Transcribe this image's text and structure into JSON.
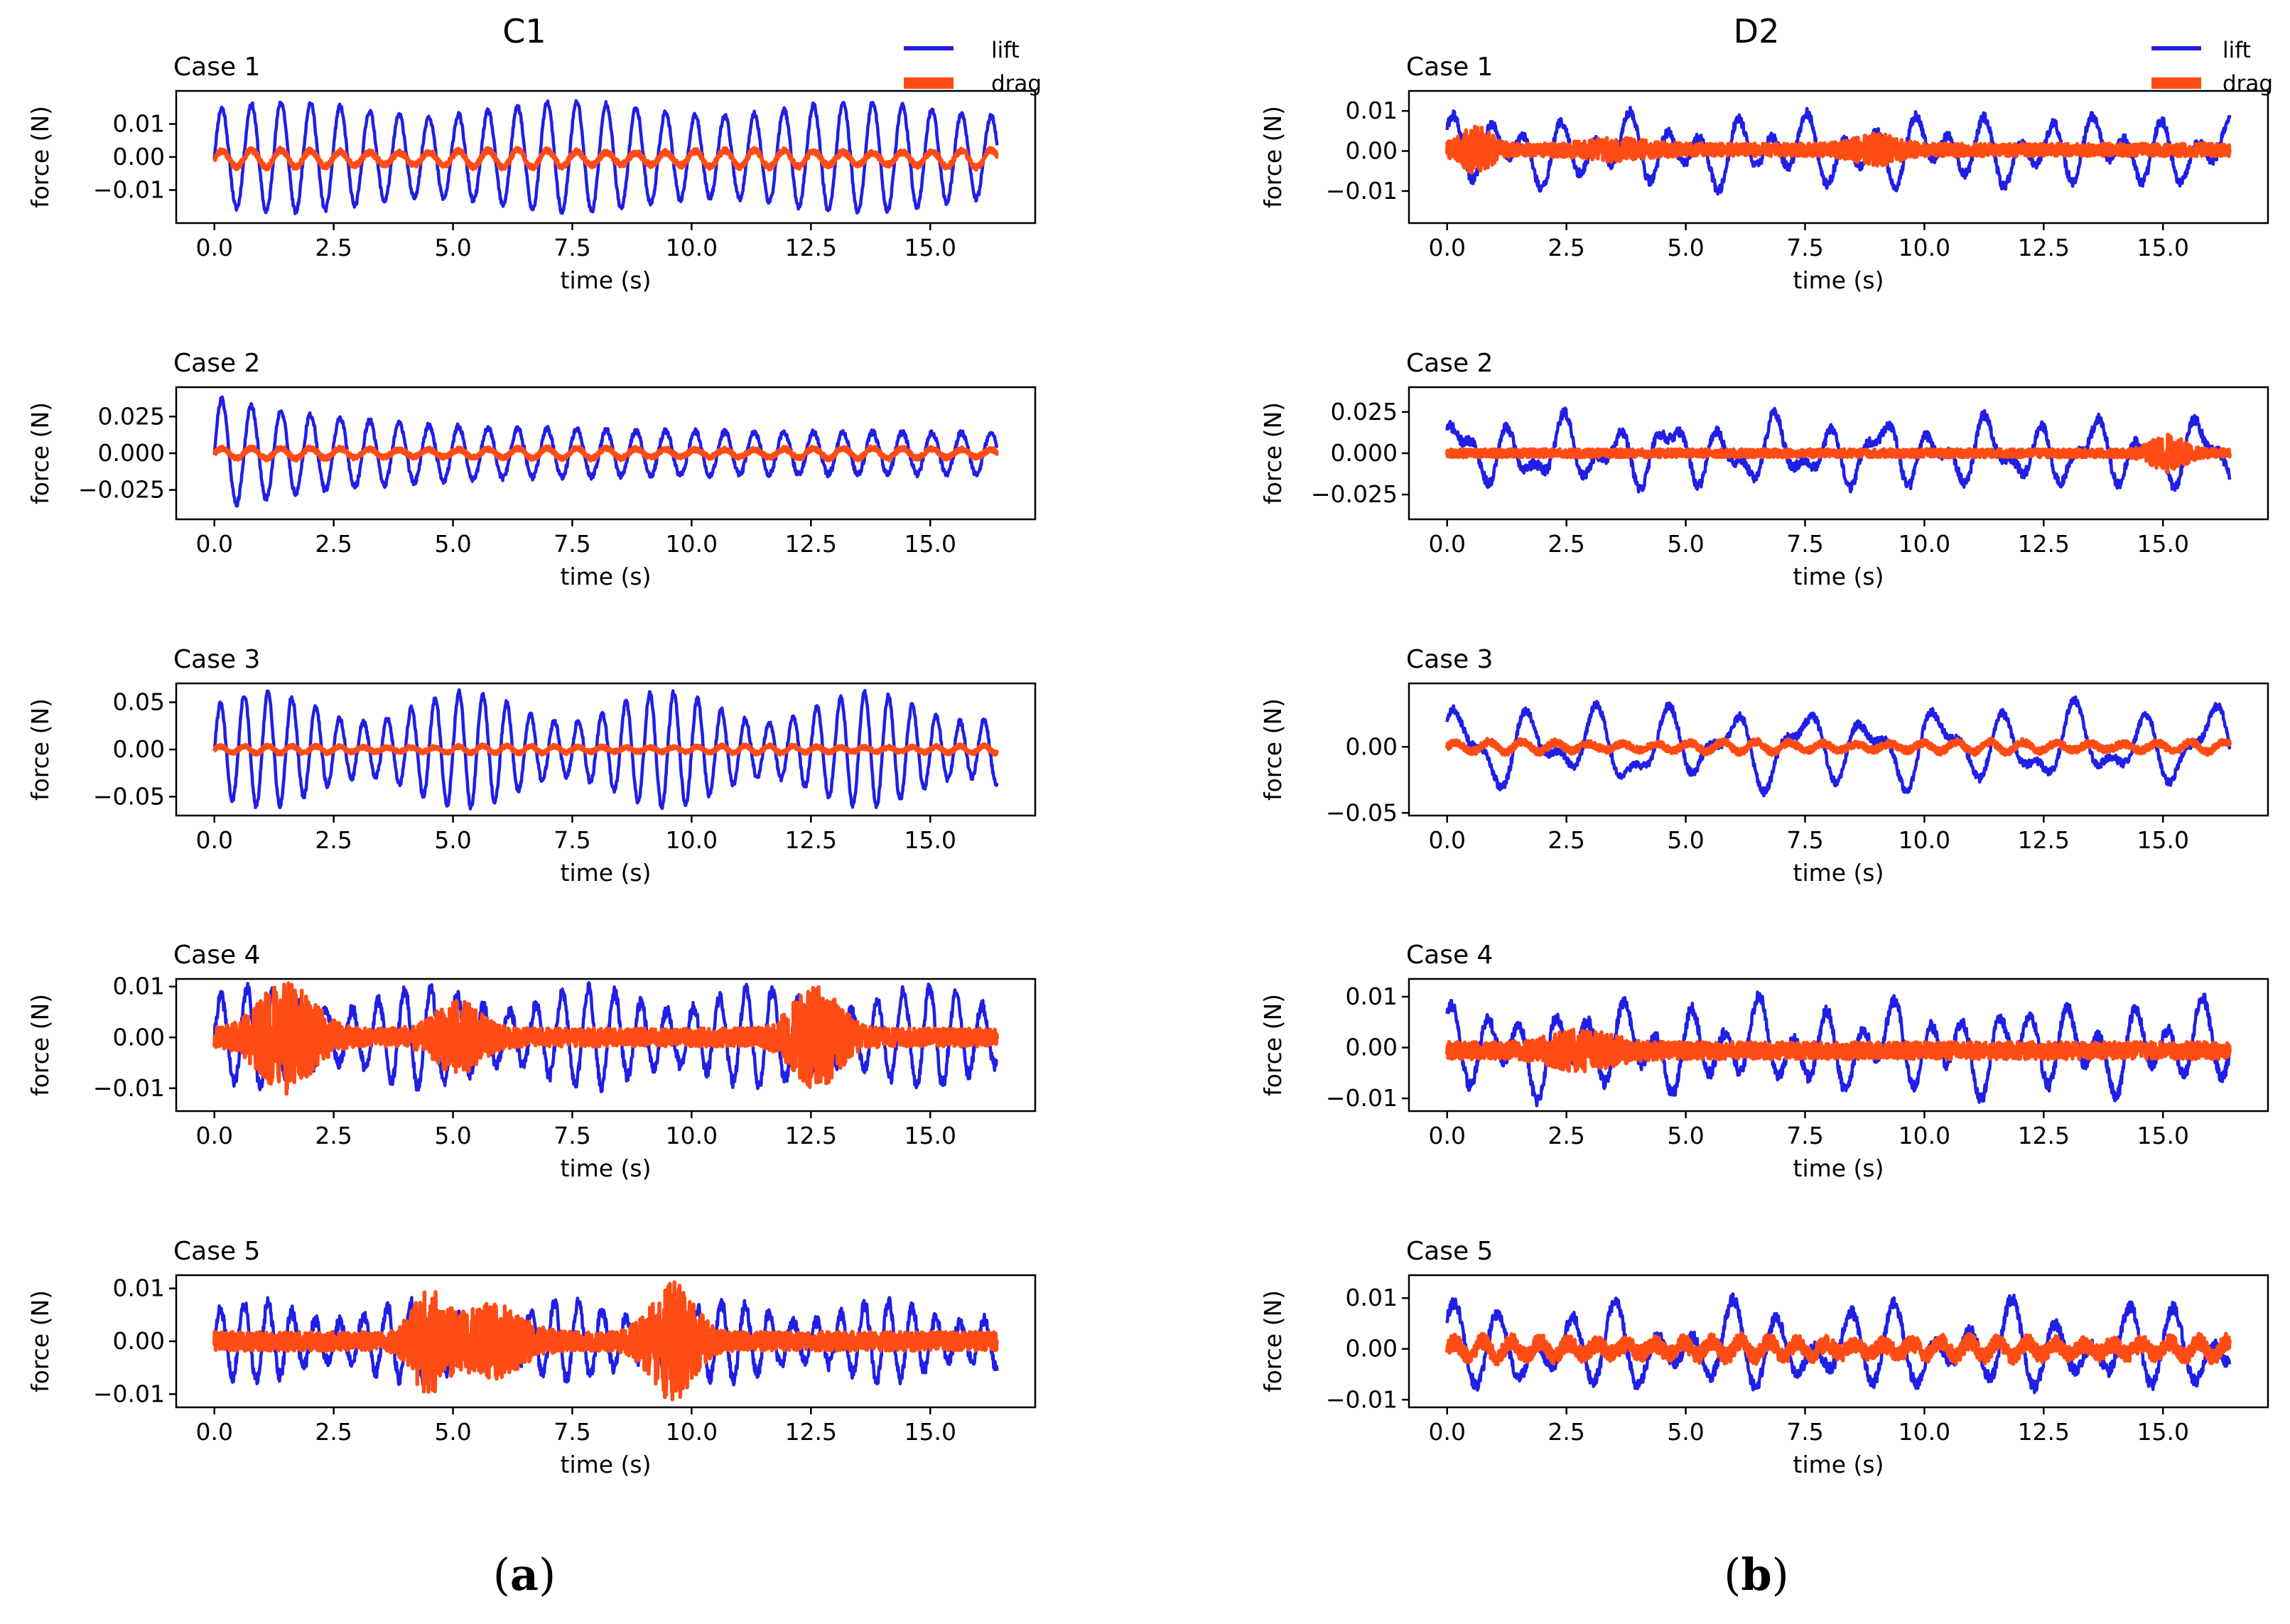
{
  "figure": {
    "panel_a": {
      "column_title": "C1",
      "sublabel_letter": "a"
    },
    "panel_b": {
      "column_title": "D2",
      "sublabel_letter": "b"
    },
    "legend": {
      "lift": "lift",
      "drag": "drag"
    },
    "colors": {
      "lift": "#1f1fe6",
      "drag": "#ff4c14",
      "axes": "#000000"
    }
  },
  "chart_data": [
    {
      "id": "a1",
      "column": "C1",
      "type": "line",
      "title": "Case 1",
      "xlabel": "time (s)",
      "ylabel": "force (N)",
      "xlim": [
        -0.8,
        17.2
      ],
      "ylim": [
        -0.02,
        0.02
      ],
      "xticks": [
        0,
        2.5,
        5,
        7.5,
        10,
        12.5,
        15
      ],
      "xtick_labels": [
        "0.0",
        "2.5",
        "5.0",
        "7.5",
        "10.0",
        "12.5",
        "15.0"
      ],
      "yticks": [
        -0.01,
        0,
        0.01
      ],
      "ytick_labels": [
        "−0.01",
        "0.00",
        "0.01"
      ],
      "x_range": [
        0,
        16.4
      ],
      "series": [
        {
          "name": "lift",
          "mode": "sine",
          "amp": 0.0145,
          "period": 0.62,
          "modDepth": 0.15,
          "modPeriod": 6,
          "offset": 0,
          "noise": 0.0008,
          "seed": 11
        },
        {
          "name": "drag",
          "mode": "sine",
          "amp": 0.0022,
          "period": 0.62,
          "modDepth": 0.2,
          "modPeriod": 5,
          "offset": -0.0005,
          "noise": 0.0008,
          "seed": 12
        }
      ]
    },
    {
      "id": "a2",
      "column": "C1",
      "type": "line",
      "title": "Case 2",
      "xlabel": "time (s)",
      "ylabel": "force (N)",
      "xlim": [
        -0.8,
        17.2
      ],
      "ylim": [
        -0.045,
        0.045
      ],
      "xticks": [
        0,
        2.5,
        5,
        7.5,
        10,
        12.5,
        15
      ],
      "xtick_labels": [
        "0.0",
        "2.5",
        "5.0",
        "7.5",
        "10.0",
        "12.5",
        "15.0"
      ],
      "yticks": [
        -0.025,
        0,
        0.025
      ],
      "ytick_labels": [
        "−0.025",
        "0.000",
        "0.025"
      ],
      "x_range": [
        0,
        16.4
      ],
      "series": [
        {
          "name": "lift",
          "mode": "decay",
          "amp": 0.038,
          "ampEnd": 0.014,
          "decayT": 3,
          "period": 0.62,
          "offset": 0,
          "noise": 0.002,
          "seed": 21
        },
        {
          "name": "drag",
          "mode": "sine",
          "amp": 0.003,
          "period": 0.62,
          "modDepth": 0.2,
          "modPeriod": 6,
          "offset": 0,
          "noise": 0.0015,
          "seed": 22
        }
      ]
    },
    {
      "id": "a3",
      "column": "C1",
      "type": "line",
      "title": "Case 3",
      "xlabel": "time (s)",
      "ylabel": "force (N)",
      "xlim": [
        -0.8,
        17.2
      ],
      "ylim": [
        -0.07,
        0.07
      ],
      "xticks": [
        0,
        2.5,
        5,
        7.5,
        10,
        12.5,
        15
      ],
      "xtick_labels": [
        "0.0",
        "2.5",
        "5.0",
        "7.5",
        "10.0",
        "12.5",
        "15.0"
      ],
      "yticks": [
        -0.05,
        0,
        0.05
      ],
      "ytick_labels": [
        "−0.05",
        "0.00",
        "0.05"
      ],
      "x_range": [
        0,
        16.4
      ],
      "series": [
        {
          "name": "lift",
          "mode": "sine",
          "amp": 0.045,
          "period": 0.5,
          "modDepth": 0.35,
          "modPeriod": 4.2,
          "offset": 0,
          "noise": 0.003,
          "seed": 31
        },
        {
          "name": "drag",
          "mode": "sine",
          "amp": 0.003,
          "period": 0.5,
          "modDepth": 0.3,
          "modPeriod": 5,
          "offset": 0,
          "noise": 0.002,
          "seed": 32
        }
      ]
    },
    {
      "id": "a4",
      "column": "C1",
      "type": "line",
      "title": "Case 4",
      "xlabel": "time (s)",
      "ylabel": "force (N)",
      "xlim": [
        -0.8,
        17.2
      ],
      "ylim": [
        -0.0145,
        0.0115
      ],
      "xticks": [
        0,
        2.5,
        5,
        7.5,
        10,
        12.5,
        15
      ],
      "xtick_labels": [
        "0.0",
        "2.5",
        "5.0",
        "7.5",
        "10.0",
        "12.5",
        "15.0"
      ],
      "yticks": [
        -0.01,
        0,
        0.01
      ],
      "ytick_labels": [
        "−0.01",
        "0.00",
        "0.01"
      ],
      "x_range": [
        0,
        16.4
      ],
      "series": [
        {
          "name": "lift",
          "mode": "sine",
          "amp": 0.0075,
          "period": 0.55,
          "modDepth": 0.3,
          "modPeriod": 3.5,
          "offset": 0,
          "noise": 0.0012,
          "seed": 41
        },
        {
          "name": "drag",
          "mode": "burst",
          "base": 0.0018,
          "bursts": [
            [
              1.5,
              0.0095,
              0.75
            ],
            [
              5.1,
              0.0055,
              0.65
            ],
            [
              12.6,
              0.0085,
              0.65
            ]
          ],
          "offset": 0,
          "seed": 42
        }
      ]
    },
    {
      "id": "a5",
      "column": "C1",
      "type": "line",
      "title": "Case 5",
      "xlabel": "time (s)",
      "ylabel": "force (N)",
      "xlim": [
        -0.8,
        17.2
      ],
      "ylim": [
        -0.0125,
        0.0125
      ],
      "xticks": [
        0,
        2.5,
        5,
        7.5,
        10,
        12.5,
        15
      ],
      "xtick_labels": [
        "0.0",
        "2.5",
        "5.0",
        "7.5",
        "10.0",
        "12.5",
        "15.0"
      ],
      "yticks": [
        -0.01,
        0,
        0.01
      ],
      "ytick_labels": [
        "−0.01",
        "0.00",
        "0.01"
      ],
      "x_range": [
        0,
        16.4
      ],
      "series": [
        {
          "name": "lift",
          "mode": "sine",
          "amp": 0.0055,
          "period": 0.5,
          "modDepth": 0.35,
          "modPeriod": 3.3,
          "offset": 0,
          "noise": 0.0012,
          "seed": 51
        },
        {
          "name": "drag",
          "mode": "burst",
          "base": 0.0018,
          "bursts": [
            [
              4.5,
              0.0085,
              0.45
            ],
            [
              5.8,
              0.0055,
              0.8
            ],
            [
              9.6,
              0.0095,
              0.6
            ]
          ],
          "offset": 0,
          "seed": 52
        }
      ]
    },
    {
      "id": "b1",
      "column": "D2",
      "type": "line",
      "title": "Case 1",
      "xlabel": "time (s)",
      "ylabel": "force (N)",
      "xlim": [
        -0.8,
        17.2
      ],
      "ylim": [
        -0.018,
        0.015
      ],
      "xticks": [
        0,
        2.5,
        5,
        7.5,
        10,
        12.5,
        15
      ],
      "xtick_labels": [
        "0.0",
        "2.5",
        "5.0",
        "7.5",
        "10.0",
        "12.5",
        "15.0"
      ],
      "yticks": [
        -0.01,
        0,
        0.01
      ],
      "ytick_labels": [
        "−0.01",
        "0.00",
        "0.01"
      ],
      "x_range": [
        0,
        16.4
      ],
      "series": [
        {
          "name": "lift",
          "mode": "multi",
          "comps": [
            [
              0.0055,
              1.35,
              0.3
            ],
            [
              0.0035,
              0.8,
              1.7
            ],
            [
              0.0015,
              0.31,
              0.5
            ]
          ],
          "offset": 0,
          "noise": 0.0012,
          "seed": 61
        },
        {
          "name": "drag",
          "mode": "burst",
          "base": 0.0016,
          "bursts": [
            [
              0.6,
              0.0045,
              0.4
            ],
            [
              9.0,
              0.0025,
              0.6
            ],
            [
              3.5,
              0.0015,
              0.8
            ]
          ],
          "offset": 0.0003,
          "seed": 62
        }
      ]
    },
    {
      "id": "b2",
      "column": "D2",
      "type": "line",
      "title": "Case 2",
      "xlabel": "time (s)",
      "ylabel": "force (N)",
      "xlim": [
        -0.8,
        17.2
      ],
      "ylim": [
        -0.04,
        0.04
      ],
      "xticks": [
        0,
        2.5,
        5,
        7.5,
        10,
        12.5,
        15
      ],
      "xtick_labels": [
        "0.0",
        "2.5",
        "5.0",
        "7.5",
        "10.0",
        "12.5",
        "15.0"
      ],
      "yticks": [
        -0.025,
        0,
        0.025
      ],
      "ytick_labels": [
        "−0.025",
        "0.000",
        "0.025"
      ],
      "x_range": [
        0,
        16.4
      ],
      "series": [
        {
          "name": "lift",
          "mode": "multi",
          "comps": [
            [
              0.013,
              0.9,
              0.4
            ],
            [
              0.008,
              1.6,
              1.9
            ],
            [
              0.004,
              0.45,
              0.7
            ]
          ],
          "offset": 0,
          "noise": 0.003,
          "seed": 71
        },
        {
          "name": "drag",
          "mode": "burst",
          "base": 0.0025,
          "bursts": [
            [
              15.1,
              0.009,
              0.45
            ]
          ],
          "offset": 0,
          "seed": 72
        }
      ]
    },
    {
      "id": "b3",
      "column": "D2",
      "type": "line",
      "title": "Case 3",
      "xlabel": "time (s)",
      "ylabel": "force (N)",
      "xlim": [
        -0.8,
        17.2
      ],
      "ylim": [
        -0.052,
        0.048
      ],
      "xticks": [
        0,
        2.5,
        5,
        7.5,
        10,
        12.5,
        15
      ],
      "xtick_labels": [
        "0.0",
        "2.5",
        "5.0",
        "7.5",
        "10.0",
        "12.5",
        "15.0"
      ],
      "yticks": [
        -0.05,
        0
      ],
      "ytick_labels": [
        "−0.05",
        "0.00"
      ],
      "x_range": [
        0,
        16.4
      ],
      "series": [
        {
          "name": "lift",
          "mode": "multi",
          "comps": [
            [
              0.02,
              0.7,
              0.3
            ],
            [
              0.011,
              1.3,
              1.1
            ],
            [
              0.005,
              0.37,
              2.0
            ]
          ],
          "offset": 0,
          "noise": 0.003,
          "seed": 81
        },
        {
          "name": "drag",
          "mode": "sine",
          "amp": 0.003,
          "period": 0.7,
          "modDepth": 0.3,
          "modPeriod": 5,
          "offset": 0,
          "noise": 0.0025,
          "seed": 82
        }
      ]
    },
    {
      "id": "b4",
      "column": "D2",
      "type": "line",
      "title": "Case 4",
      "xlabel": "time (s)",
      "ylabel": "force (N)",
      "xlim": [
        -0.8,
        17.2
      ],
      "ylim": [
        -0.0125,
        0.0135
      ],
      "xticks": [
        0,
        2.5,
        5,
        7.5,
        10,
        12.5,
        15
      ],
      "xtick_labels": [
        "0.0",
        "2.5",
        "5.0",
        "7.5",
        "10.0",
        "12.5",
        "15.0"
      ],
      "yticks": [
        -0.01,
        0,
        0.01
      ],
      "ytick_labels": [
        "−0.01",
        "0.00",
        "0.01"
      ],
      "x_range": [
        0,
        16.4
      ],
      "series": [
        {
          "name": "lift",
          "mode": "multi",
          "comps": [
            [
              0.0055,
              1.4,
              0.6
            ],
            [
              0.0035,
              0.75,
              2.2
            ],
            [
              0.0015,
              0.33,
              1.0
            ]
          ],
          "offset": 0,
          "noise": 0.0012,
          "seed": 91
        },
        {
          "name": "drag",
          "mode": "burst",
          "base": 0.0017,
          "bursts": [
            [
              2.8,
              0.0025,
              0.9
            ]
          ],
          "offset": -0.0006,
          "seed": 92
        }
      ]
    },
    {
      "id": "b5",
      "column": "D2",
      "type": "line",
      "title": "Case 5",
      "xlabel": "time (s)",
      "ylabel": "force (N)",
      "xlim": [
        -0.8,
        17.2
      ],
      "ylim": [
        -0.0115,
        0.0145
      ],
      "xticks": [
        0,
        2.5,
        5,
        7.5,
        10,
        12.5,
        15
      ],
      "xtick_labels": [
        "0.0",
        "2.5",
        "5.0",
        "7.5",
        "10.0",
        "12.5",
        "15.0"
      ],
      "yticks": [
        -0.01,
        0,
        0.01
      ],
      "ytick_labels": [
        "−0.01",
        "0.00",
        "0.01"
      ],
      "x_range": [
        0,
        16.4
      ],
      "series": [
        {
          "name": "lift",
          "mode": "multi",
          "comps": [
            [
              0.005,
              1.2,
              0.2
            ],
            [
              0.0035,
              0.85,
              1.4
            ],
            [
              0.0015,
              0.35,
              0.9
            ]
          ],
          "offset": 0,
          "noise": 0.0012,
          "seed": 101
        },
        {
          "name": "drag",
          "mode": "sine",
          "amp": 0.0012,
          "period": 0.6,
          "modDepth": 0.3,
          "modPeriod": 5,
          "offset": 0,
          "noise": 0.0016,
          "seed": 102
        }
      ]
    }
  ]
}
